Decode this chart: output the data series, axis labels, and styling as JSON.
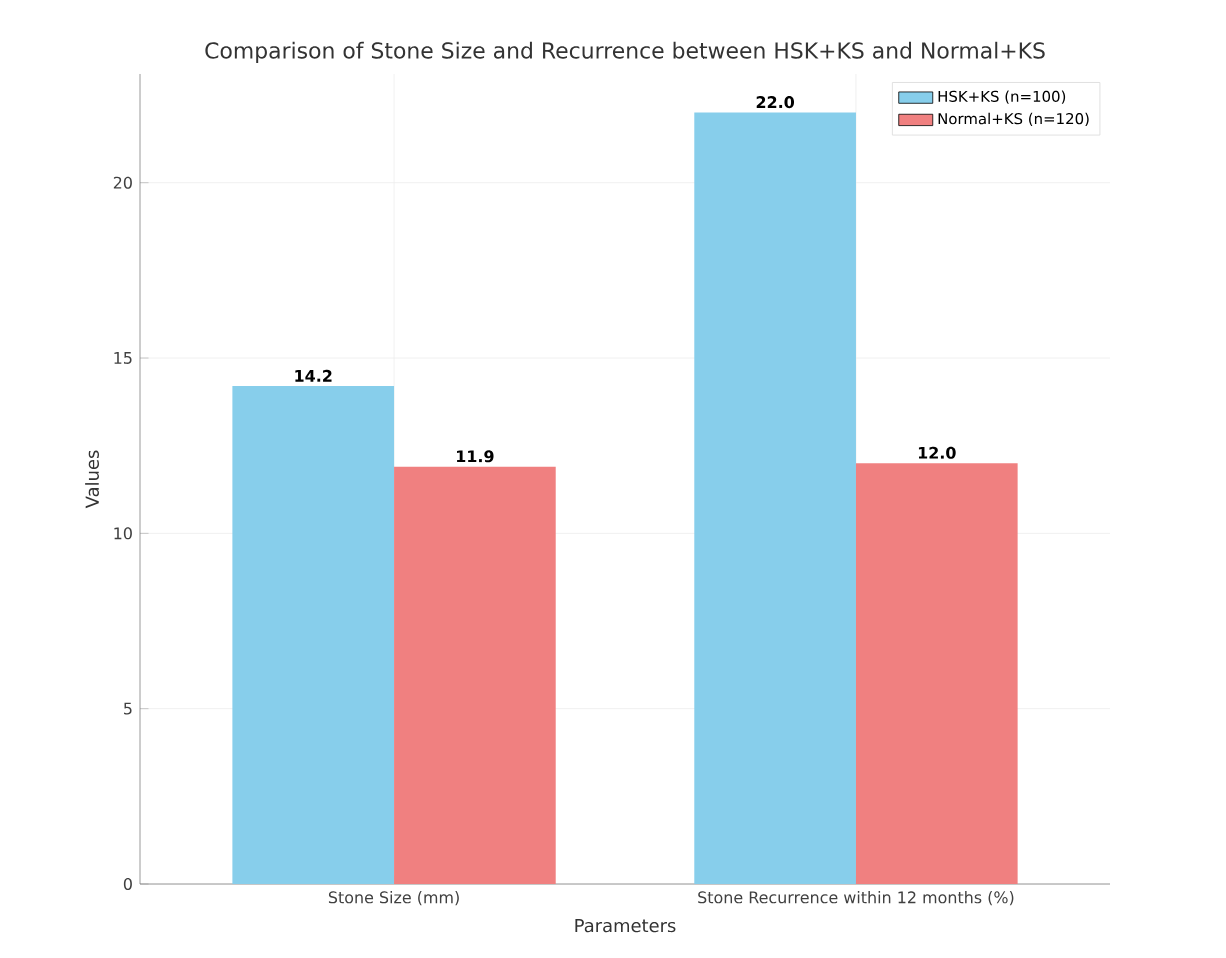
{
  "chart_data": {
    "type": "bar",
    "title": "Comparison of Stone Size and Recurrence between HSK+KS and Normal+KS",
    "xlabel": "Parameters",
    "ylabel": "Values",
    "categories": [
      "Stone Size (mm)",
      "Stone Recurrence within 12 months (%)"
    ],
    "series": [
      {
        "name": "HSK+KS (n=100)",
        "color": "#87ceeb",
        "values": [
          14.2,
          22.0
        ],
        "value_labels": [
          "14.2",
          "22.0"
        ]
      },
      {
        "name": "Normal+KS (n=120)",
        "color": "#f08080",
        "values": [
          11.9,
          12.0
        ],
        "value_labels": [
          "11.9",
          "12.0"
        ]
      }
    ],
    "ylim": [
      0,
      23.1
    ],
    "yticks": [
      0,
      5,
      10,
      15,
      20
    ],
    "grid": true,
    "legend": "top right"
  }
}
